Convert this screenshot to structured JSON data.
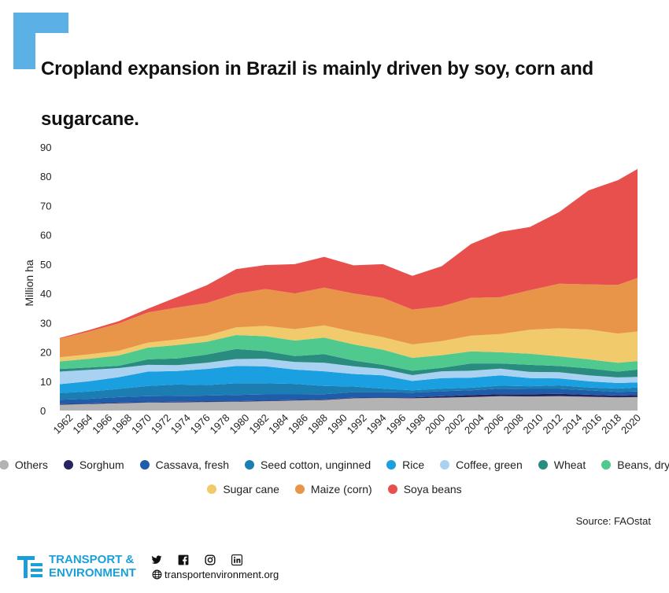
{
  "title": "Cropland expansion in Brazil is mainly driven by soy, corn and sugarcane.",
  "source": "Source: FAOstat",
  "brand": {
    "line1": "TRANSPORT &",
    "line2": "ENVIRONMENT",
    "website": "transportenvironment.org"
  },
  "social_icons": [
    "twitter-icon",
    "facebook-icon",
    "instagram-icon",
    "linkedin-icon"
  ],
  "colors": {
    "accent": "#5bb1e6",
    "brand": "#1a9fdb",
    "Others": "#b3b3b3",
    "Sorghum": "#27235e",
    "Cassava, fresh": "#1f5ca9",
    "Seed cotton, unginned": "#1b7db2",
    "Rice": "#1a9fe0",
    "Coffee, green": "#a9d2f2",
    "Wheat": "#2a8c7f",
    "Beans, dry": "#50c98f",
    "Sugar cane": "#f0ca6b",
    "Maize (corn)": "#e8954a",
    "Soya beans": "#e8504d"
  },
  "chart_data": {
    "type": "area",
    "stacked": true,
    "title": "Cropland expansion in Brazil is mainly driven by soy, corn and sugarcane.",
    "ylabel": "Million ha",
    "xlabel": "",
    "ylim": [
      0,
      90
    ],
    "yticks": [
      0,
      10,
      20,
      30,
      40,
      50,
      60,
      70,
      80,
      90
    ],
    "xticks": [
      1962,
      1964,
      1966,
      1968,
      1970,
      1972,
      1974,
      1976,
      1978,
      1980,
      1982,
      1984,
      1986,
      1988,
      1990,
      1992,
      1994,
      1996,
      1998,
      2000,
      2002,
      2004,
      2006,
      2008,
      2010,
      2012,
      2014,
      2016,
      2018,
      2020
    ],
    "grid": false,
    "legend": "bottom",
    "x": [
      1961,
      1964,
      1967,
      1970,
      1973,
      1976,
      1979,
      1982,
      1985,
      1988,
      1991,
      1994,
      1997,
      2000,
      2003,
      2006,
      2009,
      2012,
      2015,
      2018,
      2020
    ],
    "series": [
      {
        "name": "Others",
        "values": [
          2.0,
          2.2,
          2.5,
          2.7,
          2.8,
          2.9,
          3.0,
          3.2,
          3.4,
          3.6,
          4.2,
          4.3,
          4.2,
          4.4,
          4.6,
          4.9,
          4.8,
          4.9,
          4.7,
          4.5,
          4.6
        ]
      },
      {
        "name": "Sorghum",
        "values": [
          0.2,
          0.2,
          0.2,
          0.2,
          0.2,
          0.2,
          0.2,
          0.2,
          0.2,
          0.2,
          0.2,
          0.2,
          0.3,
          0.5,
          0.7,
          0.7,
          0.8,
          0.8,
          0.7,
          0.6,
          0.7
        ]
      },
      {
        "name": "Cassava, fresh",
        "values": [
          1.5,
          1.6,
          1.9,
          2.0,
          2.0,
          2.0,
          2.1,
          2.1,
          1.9,
          1.8,
          1.9,
          1.8,
          1.6,
          1.7,
          1.6,
          1.9,
          1.8,
          1.7,
          1.5,
          1.3,
          1.2
        ]
      },
      {
        "name": "Seed cotton, unginned",
        "values": [
          2.3,
          2.5,
          2.8,
          3.5,
          3.9,
          3.6,
          4.0,
          3.8,
          3.6,
          2.8,
          1.9,
          1.2,
          0.8,
          0.9,
          0.9,
          1.0,
          0.9,
          1.2,
          1.0,
          1.1,
          1.4
        ]
      },
      {
        "name": "Rice",
        "values": [
          3.0,
          3.5,
          4.0,
          4.9,
          4.6,
          5.5,
          5.9,
          5.8,
          4.9,
          5.0,
          4.3,
          4.5,
          3.2,
          3.6,
          3.4,
          3.5,
          2.8,
          2.4,
          2.1,
          1.9,
          1.7
        ]
      },
      {
        "name": "Coffee, green",
        "values": [
          4.3,
          3.9,
          3.1,
          2.3,
          2.0,
          2.1,
          2.4,
          2.6,
          2.6,
          2.9,
          2.6,
          2.2,
          2.0,
          2.3,
          2.4,
          2.3,
          2.1,
          2.1,
          2.0,
          1.9,
          1.9
        ]
      },
      {
        "name": "Wheat",
        "values": [
          0.9,
          0.8,
          0.8,
          1.9,
          2.3,
          2.8,
          3.4,
          2.6,
          2.0,
          3.0,
          2.0,
          1.4,
          1.5,
          1.2,
          2.5,
          1.8,
          2.4,
          2.1,
          2.4,
          2.0,
          2.5
        ]
      },
      {
        "name": "Beans, dry",
        "values": [
          2.6,
          3.0,
          3.5,
          4.0,
          4.6,
          4.4,
          4.8,
          5.1,
          5.3,
          5.6,
          5.5,
          5.2,
          4.4,
          4.3,
          4.1,
          3.8,
          3.8,
          3.3,
          3.1,
          3.0,
          2.9
        ]
      },
      {
        "name": "Sugar cane",
        "values": [
          1.4,
          1.5,
          1.6,
          1.7,
          1.9,
          2.1,
          2.6,
          3.5,
          3.9,
          4.2,
          4.3,
          4.3,
          4.6,
          4.8,
          5.4,
          6.2,
          8.2,
          9.6,
          10.2,
          10.0,
          10.1
        ]
      },
      {
        "name": "Maize (corn)",
        "values": [
          6.3,
          7.8,
          9.3,
          10.3,
          10.9,
          11.1,
          11.5,
          12.6,
          12.2,
          12.9,
          13.1,
          13.4,
          11.9,
          11.9,
          12.9,
          12.6,
          13.5,
          15.2,
          15.4,
          16.6,
          18.3
        ]
      },
      {
        "name": "Soya beans",
        "values": [
          0.3,
          0.5,
          0.8,
          1.3,
          3.6,
          6.1,
          8.4,
          8.2,
          10.0,
          10.5,
          9.6,
          11.5,
          11.5,
          13.7,
          18.4,
          22.3,
          21.6,
          24.5,
          32.1,
          35.8,
          37.2
        ]
      }
    ]
  }
}
